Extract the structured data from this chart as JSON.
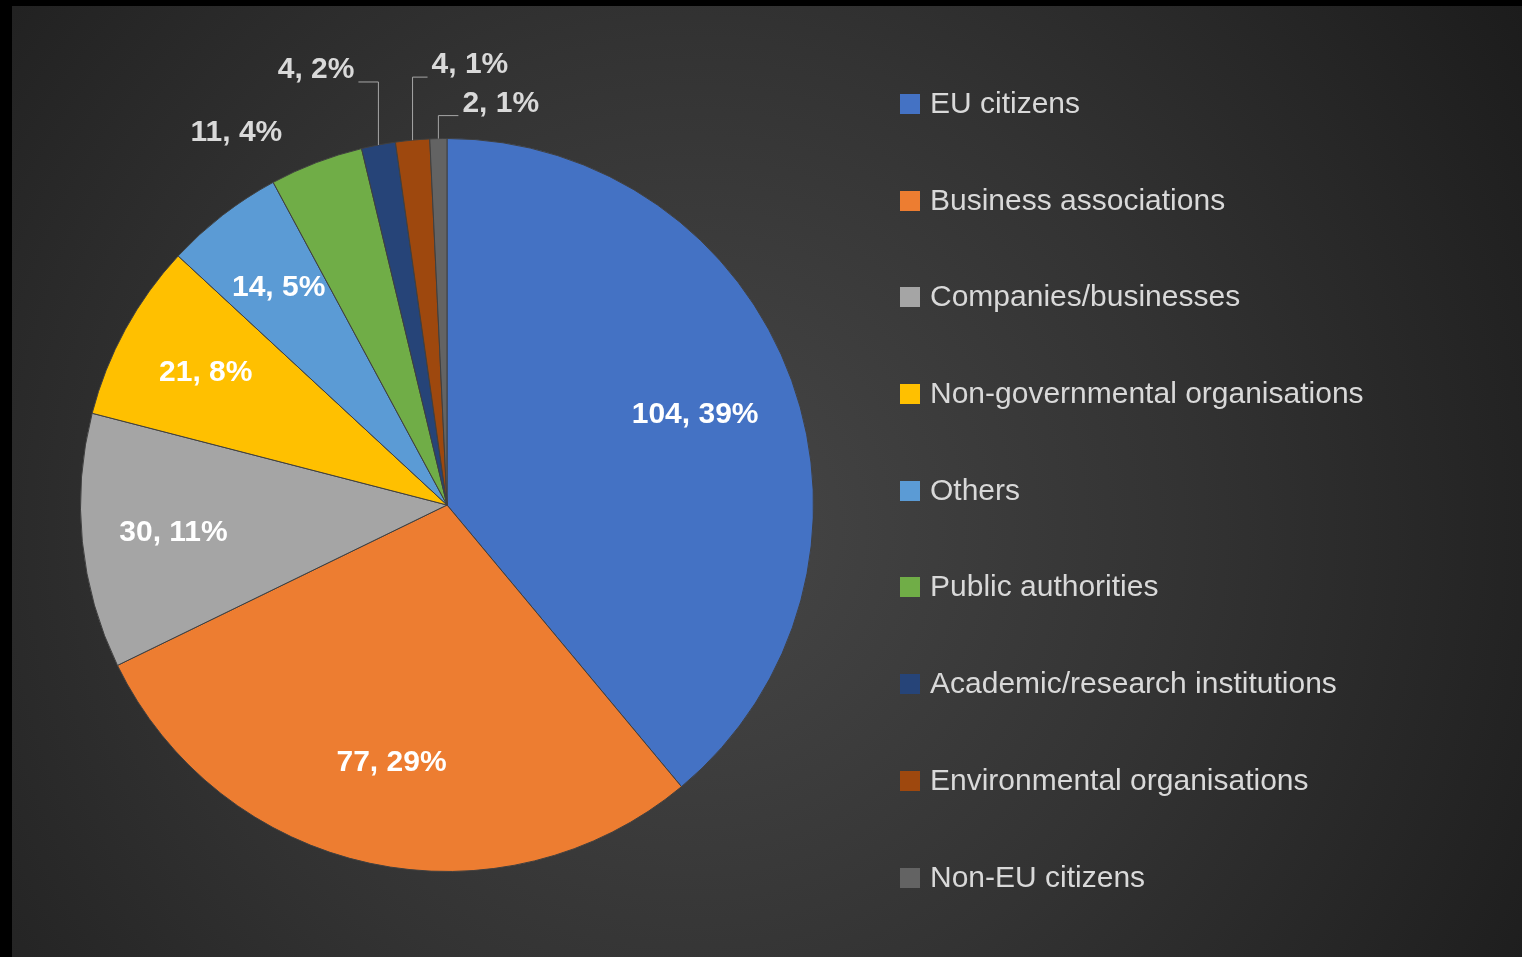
{
  "chart_data": {
    "type": "pie",
    "categories": [
      "EU citizens",
      "Business associations",
      "Companies/businesses",
      "Non-governmental organisations",
      "Others",
      "Public authorities",
      "Academic/research institutions",
      "Environmental organisations",
      "Non-EU citizens"
    ],
    "values": [
      104,
      77,
      30,
      21,
      14,
      11,
      4,
      4,
      2
    ],
    "colors": [
      "#4472c4",
      "#ed7d31",
      "#a5a5a5",
      "#ffc000",
      "#5b9bd5",
      "#70ad47",
      "#264478",
      "#9e480e",
      "#636363"
    ],
    "value_labels": [
      "104, 39%",
      "77, 29%",
      "30, 11%",
      "21, 8%",
      "14, 5%",
      "11, 4%",
      "4, 2%",
      "4, 1%",
      "2, 1%"
    ],
    "legend": "right"
  }
}
